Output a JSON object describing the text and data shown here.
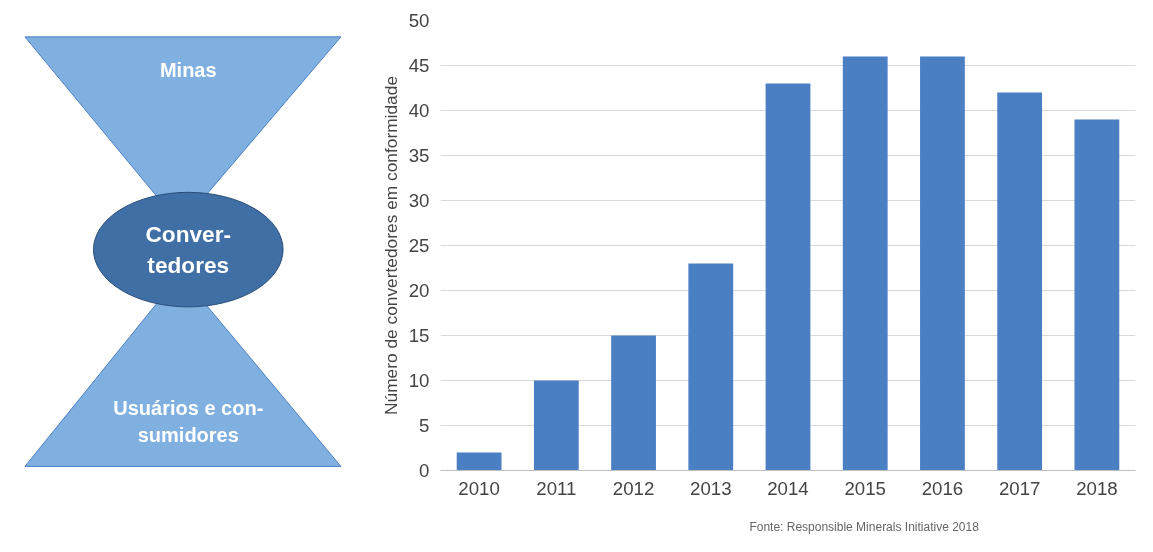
{
  "chart_data": [
    {
      "type": "other",
      "annotations": [
        "Minas",
        "Conver-\ntedores",
        "Usuários e con-\nsumidores"
      ]
    },
    {
      "type": "bar",
      "ylabel": "Número de convertedores em conformidade",
      "categories": [
        "2010",
        "2011",
        "2012",
        "2013",
        "2014",
        "2015",
        "2016",
        "2017",
        "2018"
      ],
      "values": [
        2,
        10,
        15,
        23,
        43,
        46,
        46,
        42,
        39
      ],
      "color": "#4a7fc4",
      "ylim": [
        0,
        50
      ],
      "yticks": [
        0,
        5,
        10,
        15,
        20,
        25,
        30,
        35,
        40,
        45,
        50
      ],
      "grid": "y",
      "annotations": [
        "Fonte:  Responsible Minerals Initiative 2018"
      ]
    }
  ]
}
